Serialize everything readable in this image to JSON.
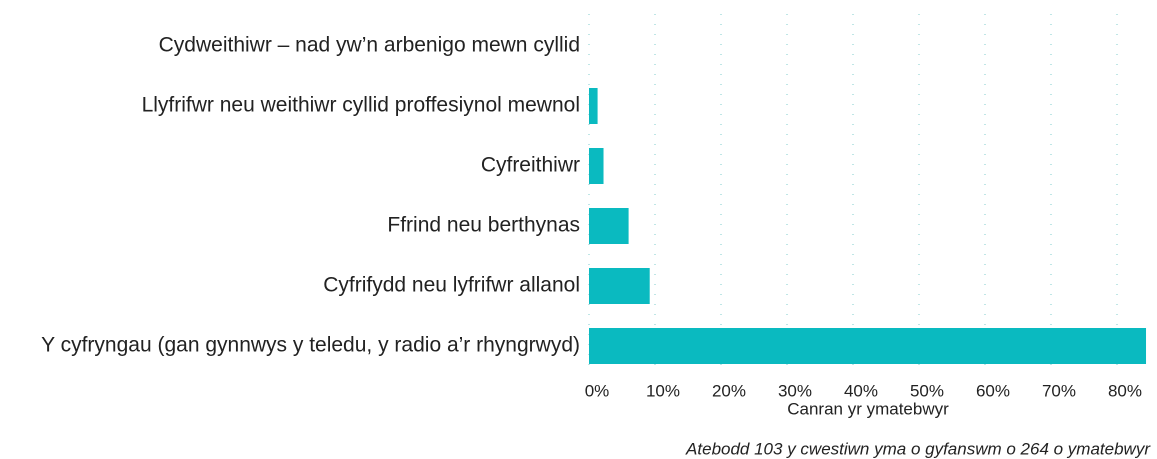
{
  "chart_data": {
    "type": "hbar",
    "categories": [
      "Cydweithiwr – nad yw’n arbenigo mewn cyllid",
      "Llyfrifwr neu weithiwr cyllid proffesiynol mewnol",
      "Cyfreithiwr",
      "Ffrind neu berthynas",
      "Cyfrifydd neu lyfrifwr allanol",
      "Y cyfryngau (gan gynnwys y teledu, y radio a’r rhyngrwyd)"
    ],
    "values": [
      0,
      1.3,
      2.2,
      6.0,
      9.2,
      84.4
    ],
    "color": "#0abac0",
    "xlabel": "Canran yr ymatebwyr",
    "annotation": "Atebodd 103 y cwestiwn yma o gyfanswm o 264 o ymatebwyr",
    "xlim": [
      0,
      84.7
    ],
    "xticks": [
      {
        "value": 0,
        "label": "0%"
      },
      {
        "value": 10,
        "label": "10%"
      },
      {
        "value": 20,
        "label": "20%"
      },
      {
        "value": 30,
        "label": "30%"
      },
      {
        "value": 40,
        "label": "40%"
      },
      {
        "value": 50,
        "label": "50%"
      },
      {
        "value": 60,
        "label": "60%"
      },
      {
        "value": 70,
        "label": "70%"
      },
      {
        "value": 80,
        "label": "80%"
      }
    ],
    "grid": true
  }
}
